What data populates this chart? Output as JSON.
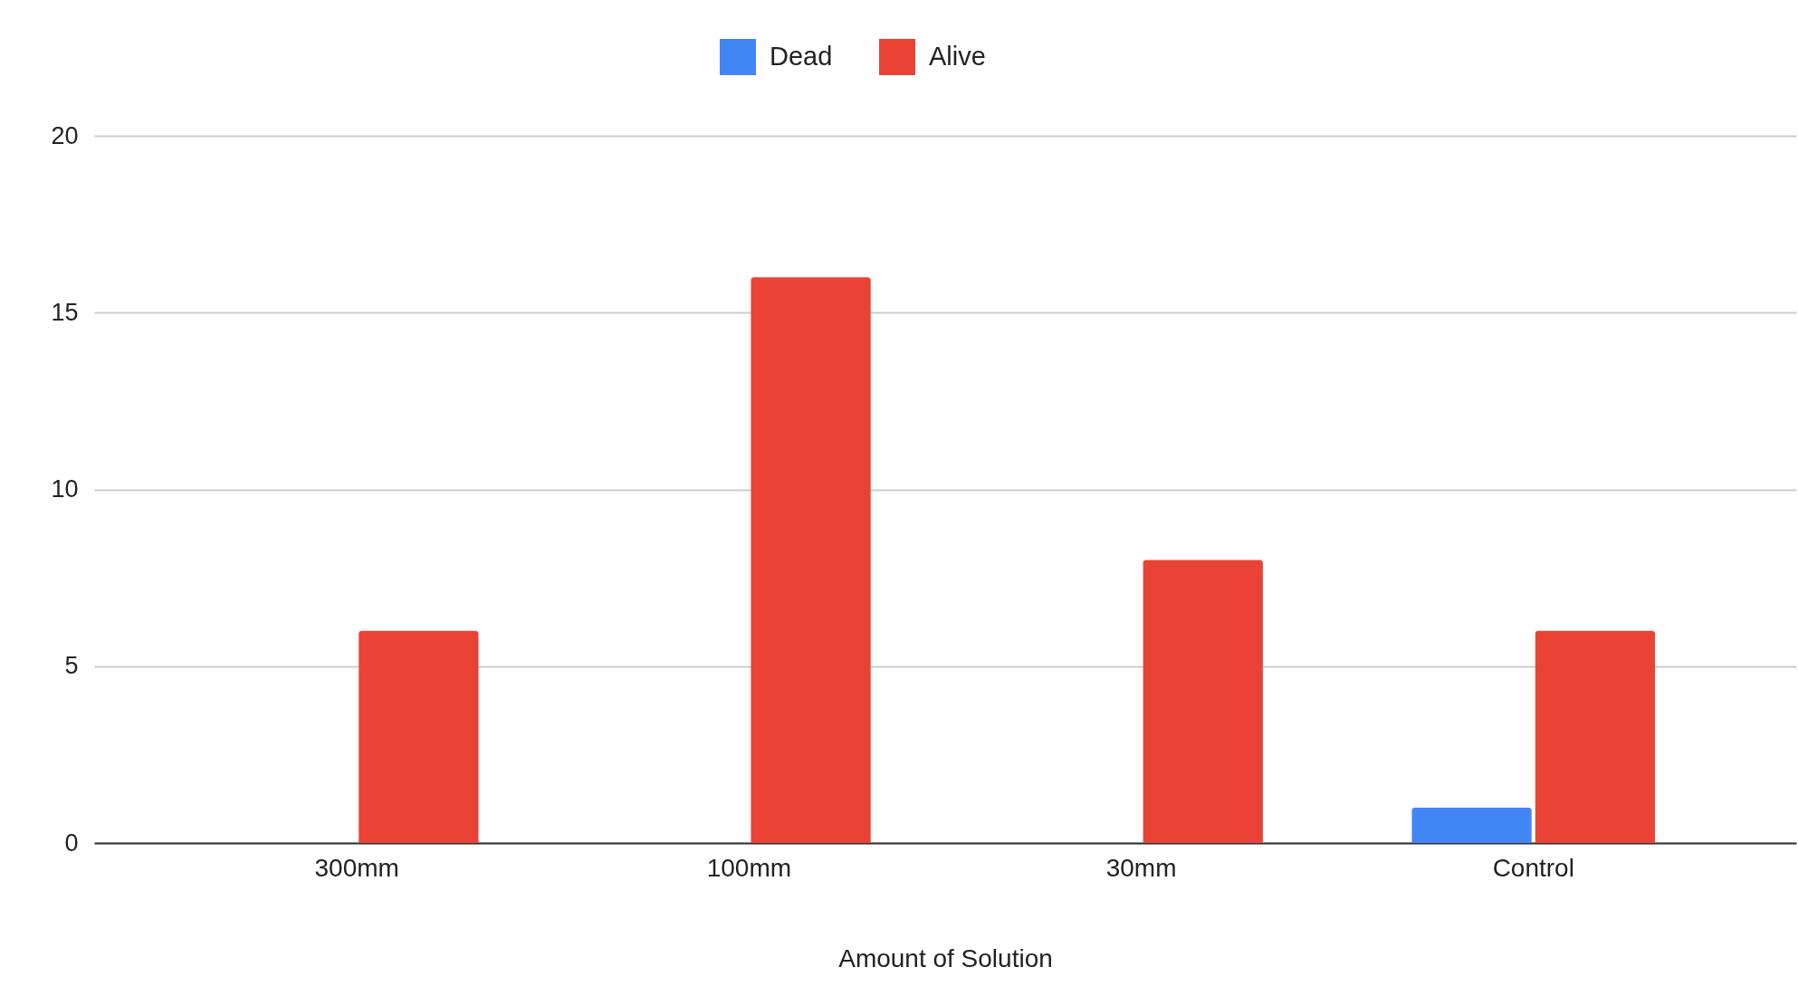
{
  "chart_data": {
    "type": "bar",
    "xlabel": "Amount of Solution",
    "categories": [
      "300mm",
      "100mm",
      "30mm",
      "Control"
    ],
    "series": [
      {
        "name": "Dead",
        "color": "#4285f4",
        "values": [
          0,
          0,
          0,
          1
        ]
      },
      {
        "name": "Alive",
        "color": "#ea4335",
        "values": [
          6,
          16,
          8,
          6
        ]
      }
    ],
    "ylim": [
      0,
      20
    ],
    "yticks": [
      0,
      5,
      10,
      15,
      20
    ],
    "grid": "y",
    "legend": "top"
  }
}
